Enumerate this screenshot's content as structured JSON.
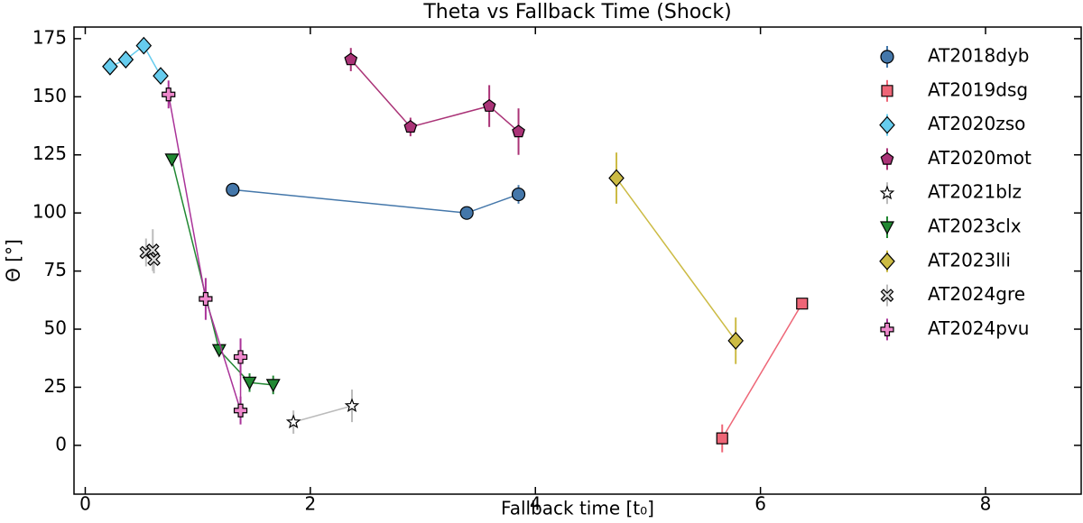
{
  "chart_data": {
    "type": "scatter",
    "title": "Theta vs Fallback Time (Shock)",
    "x_label": "Fallback time [t₀]",
    "y_label": "Θ [°]",
    "xlim": [
      -0.1,
      8.85
    ],
    "ylim": [
      -21,
      180
    ],
    "xticks": [
      0,
      2,
      4,
      6,
      8
    ],
    "yticks": [
      0,
      25,
      50,
      75,
      100,
      125,
      150,
      175
    ],
    "legend": "upper right",
    "series": [
      {
        "name": "AT2018dyb",
        "color": "#4477aa",
        "face": "#4477aa",
        "marker": "circle",
        "x": [
          1.31,
          3.39,
          3.85
        ],
        "values": [
          110,
          100,
          108
        ],
        "errors": [
          2,
          2,
          4
        ]
      },
      {
        "name": "AT2019dsg",
        "color": "#ee6677",
        "face": "#ee6677",
        "marker": "square",
        "x": [
          5.66,
          6.37
        ],
        "values": [
          3,
          61
        ],
        "errors": [
          6,
          2
        ]
      },
      {
        "name": "AT2020zso",
        "color": "#66ccee",
        "face": "#66ccee",
        "marker": "diamond",
        "x": [
          0.22,
          0.36,
          0.52,
          0.67
        ],
        "values": [
          163,
          166,
          172,
          159
        ],
        "errors": [
          3,
          2,
          2,
          3
        ]
      },
      {
        "name": "AT2020mot",
        "color": "#aa3377",
        "face": "#aa3377",
        "marker": "pentagon",
        "x": [
          2.36,
          2.89,
          3.59,
          3.85
        ],
        "values": [
          166,
          137,
          146,
          135
        ],
        "errors": [
          5,
          4,
          9,
          10
        ]
      },
      {
        "name": "AT2021blz",
        "color": "#bbbbbb",
        "face": "#ffffff",
        "marker": "star",
        "x": [
          1.85,
          2.37
        ],
        "values": [
          10,
          17
        ],
        "errors": [
          5,
          7
        ]
      },
      {
        "name": "AT2023clx",
        "color": "#228833",
        "face": "#228833",
        "marker": "triangle-down",
        "x": [
          0.77,
          1.19,
          1.46,
          1.67
        ],
        "values": [
          123,
          41,
          27,
          26
        ],
        "errors": [
          2,
          2,
          4,
          4
        ]
      },
      {
        "name": "AT2023lli",
        "color": "#ccbb44",
        "face": "#ccbb44",
        "marker": "diamond",
        "x": [
          4.72,
          5.78
        ],
        "values": [
          115,
          45
        ],
        "errors": [
          11,
          10
        ]
      },
      {
        "name": "AT2024gre",
        "color": "#bbbbbb",
        "face": "#dddddd",
        "marker": "x",
        "x": [
          0.54,
          0.6,
          0.61
        ],
        "values": [
          83,
          84,
          80
        ],
        "errors": [
          6,
          9,
          6
        ]
      },
      {
        "name": "AT2024pvu",
        "color": "#aa3399",
        "face": "#ee88cc",
        "marker": "plus",
        "x": [
          0.74,
          1.07,
          1.38,
          1.38
        ],
        "values": [
          151,
          63,
          15,
          38
        ],
        "errors": [
          6,
          9,
          6,
          8
        ]
      }
    ]
  }
}
